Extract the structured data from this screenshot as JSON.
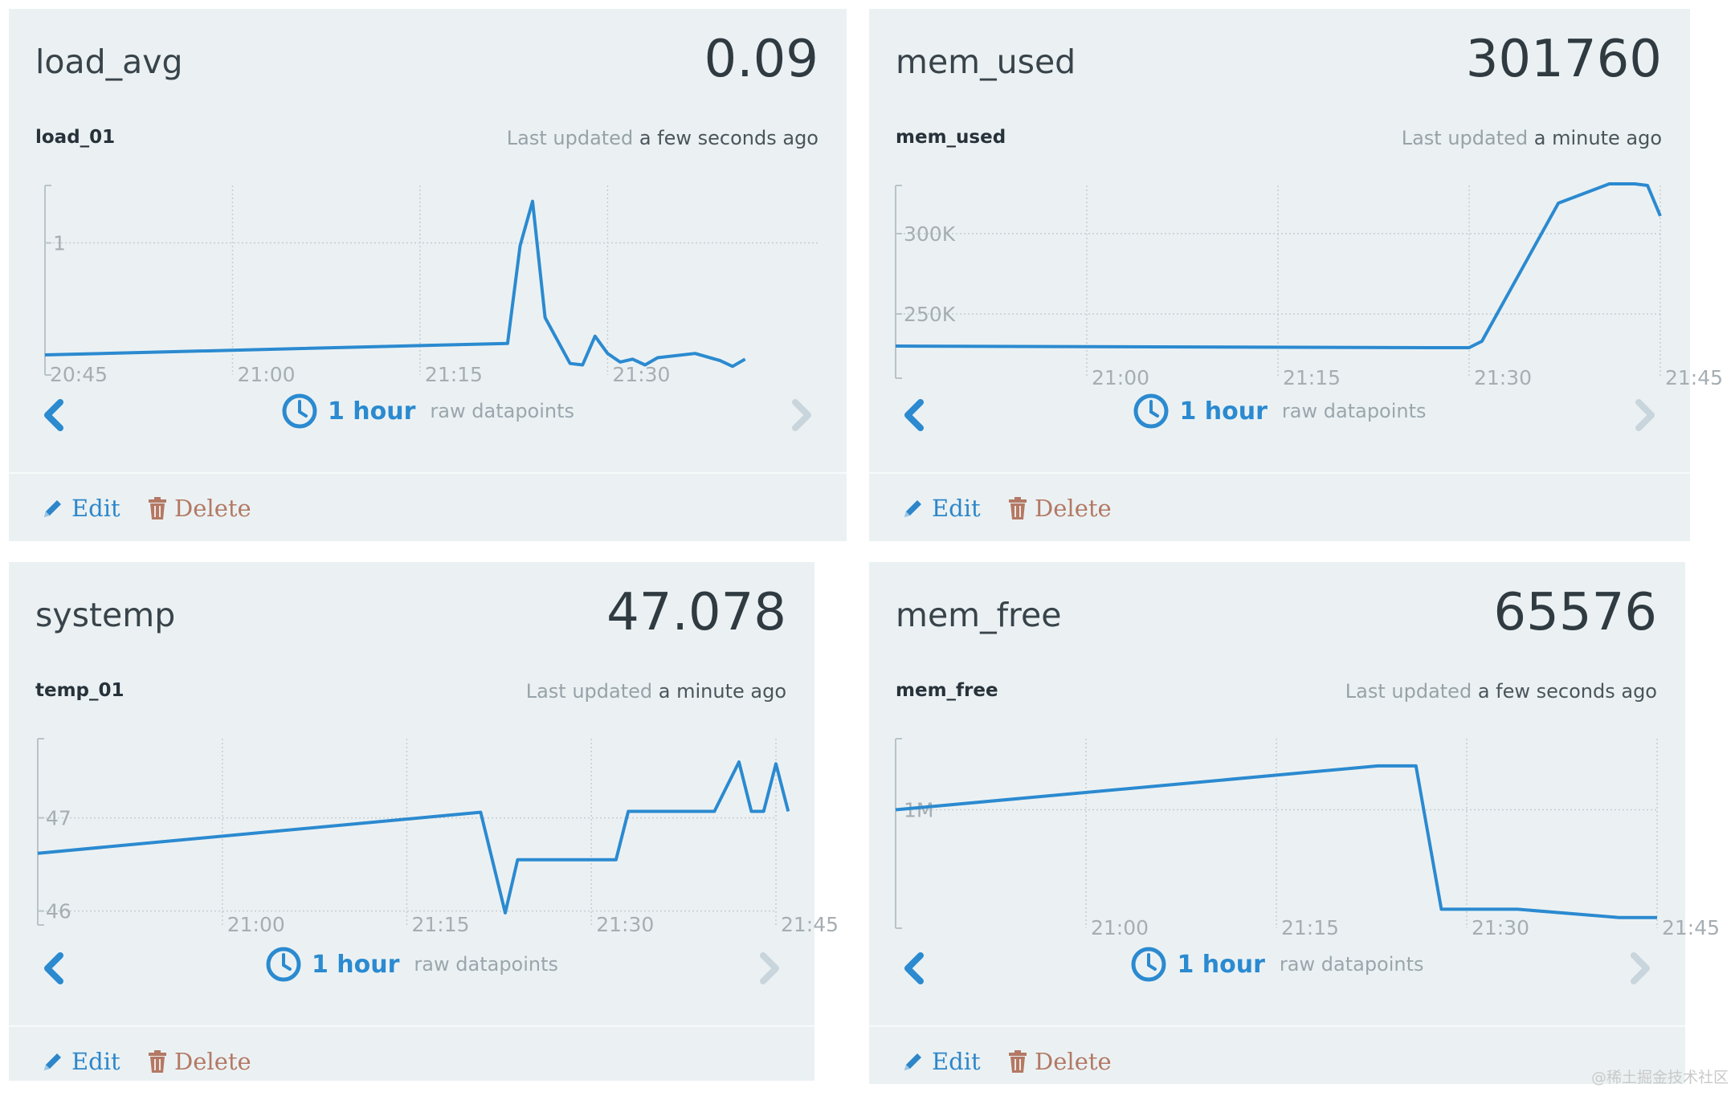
{
  "colors": {
    "card_bg": "#ebf1f3",
    "series": "#2b8ad0",
    "edit": "#2d86c9",
    "delete": "#b37965"
  },
  "cards": [
    {
      "name": "load_avg",
      "value": "0.09",
      "stream": "load_01",
      "last_updated_label": "Last updated",
      "last_updated_time": "a few seconds ago",
      "range_label": "1 hour",
      "range_mode": "raw datapoints",
      "edit_label": "Edit",
      "delete_label": "Delete",
      "chart_data": {
        "type": "line",
        "xlabel": "",
        "ylabel": "",
        "x_ticks": [
          "20:45",
          "21:00",
          "21:15",
          "21:30"
        ],
        "y_ticks": [
          "1"
        ],
        "xlim": [
          "20:45",
          "21:47"
        ],
        "ylim": [
          0.08,
          1.4
        ],
        "grid": true,
        "series": [
          {
            "x": [
              "20:45",
              "21:22",
              "21:23",
              "21:24",
              "21:25",
              "21:27",
              "21:28",
              "21:29",
              "21:30",
              "21:31",
              "21:32",
              "21:33",
              "21:34",
              "21:37",
              "21:39",
              "21:40",
              "21:41"
            ],
            "y": [
              0.22,
              0.3,
              0.98,
              1.29,
              0.48,
              0.16,
              0.15,
              0.35,
              0.23,
              0.17,
              0.19,
              0.15,
              0.2,
              0.23,
              0.18,
              0.14,
              0.19
            ]
          }
        ]
      }
    },
    {
      "name": "mem_used",
      "value": "301760",
      "stream": "mem_used",
      "last_updated_label": "Last updated",
      "last_updated_time": "a minute ago",
      "range_label": "1 hour",
      "range_mode": "raw datapoints",
      "edit_label": "Edit",
      "delete_label": "Delete",
      "chart_data": {
        "type": "line",
        "xlabel": "",
        "ylabel": "",
        "x_ticks": [
          "21:00",
          "21:15",
          "21:30",
          "21:45"
        ],
        "y_ticks": [
          "300K",
          "250K"
        ],
        "xlim": [
          "20:45",
          "21:45"
        ],
        "ylim": [
          210000,
          330000
        ],
        "grid": true,
        "series": [
          {
            "x": [
              "20:45",
              "21:27",
              "21:30",
              "21:31",
              "21:37",
              "21:41",
              "21:43",
              "21:44",
              "21:45"
            ],
            "y": [
              230000,
              229000,
              229000,
              233000,
              319000,
              331000,
              331000,
              330000,
              311000
            ]
          }
        ]
      }
    },
    {
      "name": "systemp",
      "value": "47.078",
      "stream": "temp_01",
      "last_updated_label": "Last updated",
      "last_updated_time": "a minute ago",
      "range_label": "1 hour",
      "range_mode": "raw datapoints",
      "edit_label": "Edit",
      "delete_label": "Delete",
      "chart_data": {
        "type": "line",
        "xlabel": "",
        "ylabel": "",
        "x_ticks": [
          "21:00",
          "21:15",
          "21:30",
          "21:45"
        ],
        "y_ticks": [
          "47",
          "46"
        ],
        "xlim": [
          "20:45",
          "21:45"
        ],
        "ylim": [
          45.85,
          47.85
        ],
        "grid": true,
        "series": [
          {
            "x": [
              "20:45",
              "21:21",
              "21:23",
              "21:24",
              "21:32",
              "21:33",
              "21:40",
              "21:42",
              "21:43",
              "21:44",
              "21:45",
              "21:46"
            ],
            "y": [
              46.62,
              47.06,
              45.98,
              46.55,
              46.55,
              47.07,
              47.07,
              47.6,
              47.07,
              47.07,
              47.58,
              47.07
            ]
          }
        ]
      }
    },
    {
      "name": "mem_free",
      "value": "65576",
      "stream": "mem_free",
      "last_updated_label": "Last updated",
      "last_updated_time": "a few seconds ago",
      "range_label": "1 hour",
      "range_mode": "raw datapoints",
      "edit_label": "Edit",
      "delete_label": "Delete",
      "chart_data": {
        "type": "line",
        "xlabel": "",
        "ylabel": "",
        "x_ticks": [
          "21:00",
          "21:15",
          "21:30",
          "21:45"
        ],
        "y_ticks": [
          "1M"
        ],
        "xlim": [
          "20:45",
          "21:45"
        ],
        "ylim": [
          0,
          1600000
        ],
        "grid": true,
        "series": [
          {
            "x": [
              "20:45",
              "21:23",
              "21:26",
              "21:28",
              "21:34",
              "21:42",
              "21:45"
            ],
            "y": [
              1000000,
              1370000,
              1370000,
              160000,
              160000,
              90000,
              90000
            ]
          }
        ]
      }
    }
  ],
  "watermark": "@稀土掘金技术社区"
}
